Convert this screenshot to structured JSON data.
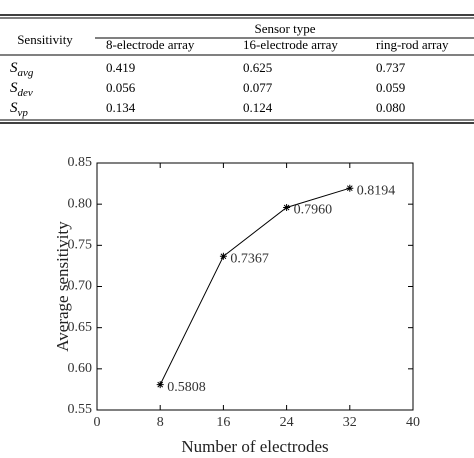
{
  "table": {
    "header": {
      "stub": "Sensitivity",
      "group": "Sensor type",
      "columns": [
        "8-electrode array",
        "16-electrode array",
        "ring-rod array"
      ]
    },
    "rows": [
      {
        "label": {
          "main": "S",
          "sub": "avg"
        },
        "cells": [
          "0.419",
          "0.625",
          "0.737"
        ]
      },
      {
        "label": {
          "main": "S",
          "sub": "dev"
        },
        "cells": [
          "0.056",
          "0.077",
          "0.059"
        ]
      },
      {
        "label": {
          "main": "S",
          "sub": "vp"
        },
        "cells": [
          "0.134",
          "0.124",
          "0.080"
        ]
      }
    ]
  },
  "chart_data": {
    "type": "line",
    "x": [
      8,
      16,
      24,
      32
    ],
    "values": [
      0.5808,
      0.7367,
      0.796,
      0.8194
    ],
    "value_labels": [
      "0.5808",
      "0.7367",
      "0.7960",
      "0.8194"
    ],
    "color": "#000000",
    "xlabel": "Number of electrodes",
    "ylabel": "Average sensitivity",
    "xlim": [
      0,
      40
    ],
    "xticks": [
      0,
      8,
      16,
      24,
      32,
      40
    ],
    "ylim": [
      0.55,
      0.85
    ],
    "yticks": [
      0.55,
      {
        "value": 0.6,
        "label": "0.60"
      },
      0.65,
      {
        "value": 0.7,
        "label": "0.70"
      },
      0.75,
      {
        "value": 0.8,
        "label": "0.80"
      },
      0.85
    ]
  }
}
